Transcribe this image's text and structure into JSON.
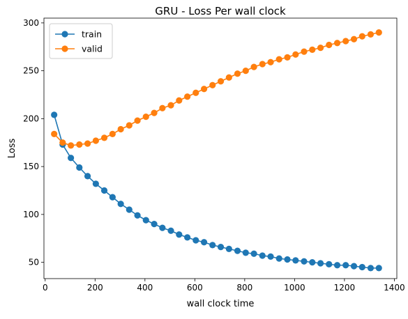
{
  "chart_data": {
    "type": "line",
    "title": "GRU - Loss Per wall clock",
    "xlabel": "wall clock time",
    "ylabel": "Loss",
    "xlim": [
      -5,
      1410
    ],
    "ylim": [
      33,
      305
    ],
    "xticks": [
      0,
      200,
      400,
      600,
      800,
      1000,
      1200,
      1400
    ],
    "yticks": [
      50,
      100,
      150,
      200,
      250,
      300
    ],
    "grid": false,
    "legend": "upper-left",
    "series": [
      {
        "name": "train",
        "color": "#1f77b4",
        "marker": "circle",
        "x": [
          36,
          70,
          103,
          137,
          170,
          203,
          237,
          270,
          303,
          337,
          370,
          404,
          437,
          470,
          504,
          537,
          570,
          604,
          637,
          671,
          704,
          737,
          771,
          804,
          837,
          871,
          904,
          938,
          971,
          1004,
          1038,
          1071,
          1104,
          1138,
          1171,
          1205,
          1238,
          1271,
          1305,
          1338
        ],
        "y": [
          204,
          173,
          159,
          149,
          140,
          132,
          125,
          118,
          111,
          105,
          99,
          94,
          90,
          86,
          83,
          79,
          76,
          73,
          71,
          68,
          66,
          64,
          62,
          60,
          59,
          57,
          56,
          54,
          53,
          52,
          51,
          50,
          49,
          48,
          47,
          47,
          46,
          45,
          44,
          44
        ]
      },
      {
        "name": "valid",
        "color": "#ff7f0e",
        "marker": "circle",
        "x": [
          36,
          70,
          103,
          137,
          170,
          203,
          237,
          270,
          303,
          337,
          370,
          404,
          437,
          470,
          504,
          537,
          570,
          604,
          637,
          671,
          704,
          737,
          771,
          804,
          837,
          871,
          904,
          938,
          971,
          1004,
          1038,
          1071,
          1104,
          1138,
          1171,
          1205,
          1238,
          1271,
          1305,
          1338
        ],
        "y": [
          184,
          175,
          172,
          173,
          174,
          177,
          180,
          184,
          189,
          193,
          198,
          202,
          206,
          211,
          214,
          219,
          223,
          227,
          231,
          235,
          239,
          243,
          247,
          250,
          254,
          257,
          259,
          262,
          264,
          267,
          270,
          272,
          274,
          277,
          279,
          281,
          283,
          286,
          288,
          290
        ]
      }
    ]
  }
}
